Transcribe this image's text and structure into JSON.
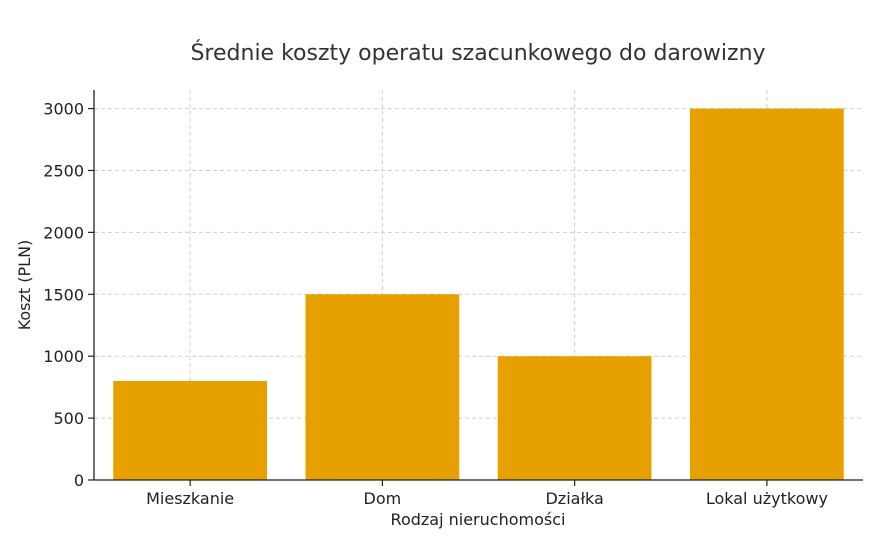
{
  "chart_data": {
    "type": "bar",
    "title": "Średnie koszty operatu szacunkowego do darowizny",
    "xlabel": "Rodzaj nieruchomości",
    "ylabel": "Koszt (PLN)",
    "categories": [
      "Mieszkanie",
      "Dom",
      "Działka",
      "Lokal użytkowy"
    ],
    "values": [
      800,
      1500,
      1000,
      3000
    ],
    "ylim": [
      0,
      3150
    ],
    "yticks": [
      0,
      500,
      1000,
      1500,
      2000,
      2500,
      3000
    ],
    "grid": true,
    "bar_color": "#E6A100"
  }
}
